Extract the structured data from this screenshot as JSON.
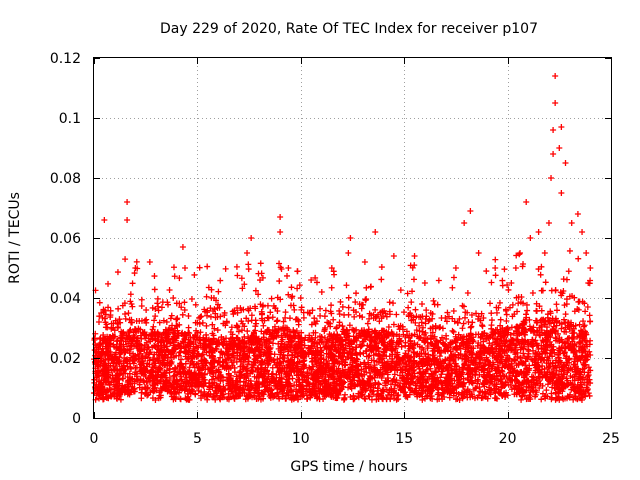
{
  "chart_data": {
    "type": "scatter",
    "title": "Day 229 of 2020, Rate Of TEC Index for receiver p107",
    "xlabel": "GPS time / hours",
    "ylabel": "ROTI / TECUs",
    "xlim": [
      0,
      25
    ],
    "ylim": [
      0,
      0.12
    ],
    "xticks": [
      0,
      5,
      10,
      15,
      20,
      25
    ],
    "xtick_labels": [
      "0",
      "5",
      "10",
      "15",
      "20",
      "25"
    ],
    "yticks": [
      0,
      0.02,
      0.04,
      0.06,
      0.08,
      0.1,
      0.12
    ],
    "ytick_labels": [
      "0",
      "0.02",
      "0.04",
      "0.06",
      "0.08",
      "0.1",
      "0.12"
    ],
    "grid": true,
    "marker": "+",
    "color": "#ff0000",
    "series": [
      {
        "name": "ROTI",
        "points": [
          [
            0.5,
            0.066
          ],
          [
            1.6,
            0.072
          ],
          [
            1.6,
            0.066
          ],
          [
            2.0,
            0.05
          ],
          [
            2.7,
            0.052
          ],
          [
            4.3,
            0.057
          ],
          [
            4.4,
            0.05
          ],
          [
            5.8,
            0.04
          ],
          [
            7.4,
            0.055
          ],
          [
            7.6,
            0.06
          ],
          [
            9.0,
            0.067
          ],
          [
            9.0,
            0.062
          ],
          [
            9.4,
            0.05
          ],
          [
            10.0,
            0.04
          ],
          [
            10.5,
            0.046
          ],
          [
            11.5,
            0.05
          ],
          [
            12.4,
            0.06
          ],
          [
            12.3,
            0.055
          ],
          [
            13.1,
            0.052
          ],
          [
            13.6,
            0.062
          ],
          [
            14.5,
            0.054
          ],
          [
            15.5,
            0.054
          ],
          [
            16.0,
            0.045
          ],
          [
            17.5,
            0.05
          ],
          [
            17.9,
            0.065
          ],
          [
            18.2,
            0.069
          ],
          [
            18.6,
            0.055
          ],
          [
            19.4,
            0.05
          ],
          [
            20.4,
            0.05
          ],
          [
            20.6,
            0.055
          ],
          [
            20.9,
            0.072
          ],
          [
            21.1,
            0.06
          ],
          [
            21.5,
            0.062
          ],
          [
            21.8,
            0.055
          ],
          [
            22.0,
            0.065
          ],
          [
            22.1,
            0.08
          ],
          [
            22.2,
            0.088
          ],
          [
            22.2,
            0.096
          ],
          [
            22.3,
            0.105
          ],
          [
            22.3,
            0.114
          ],
          [
            22.5,
            0.09
          ],
          [
            22.6,
            0.097
          ],
          [
            22.8,
            0.085
          ],
          [
            22.6,
            0.075
          ],
          [
            23.1,
            0.065
          ],
          [
            23.4,
            0.068
          ],
          [
            23.6,
            0.062
          ],
          [
            23.8,
            0.055
          ],
          [
            24.0,
            0.05
          ],
          [
            23.9,
            0.045
          ]
        ],
        "baseline": [
          [
            0.0,
            0.013
          ],
          [
            1.0,
            0.016
          ],
          [
            2.0,
            0.018
          ],
          [
            3.0,
            0.017
          ],
          [
            4.0,
            0.018
          ],
          [
            5.0,
            0.016
          ],
          [
            6.0,
            0.015
          ],
          [
            7.0,
            0.015
          ],
          [
            8.0,
            0.016
          ],
          [
            9.0,
            0.02
          ],
          [
            10.0,
            0.015
          ],
          [
            11.0,
            0.015
          ],
          [
            12.0,
            0.017
          ],
          [
            13.0,
            0.018
          ],
          [
            14.0,
            0.017
          ],
          [
            15.0,
            0.016
          ],
          [
            16.0,
            0.015
          ],
          [
            17.0,
            0.013
          ],
          [
            18.0,
            0.016
          ],
          [
            19.0,
            0.017
          ],
          [
            20.0,
            0.018
          ],
          [
            21.0,
            0.02
          ],
          [
            22.0,
            0.022
          ],
          [
            23.0,
            0.02
          ],
          [
            24.0,
            0.016
          ]
        ]
      }
    ]
  }
}
